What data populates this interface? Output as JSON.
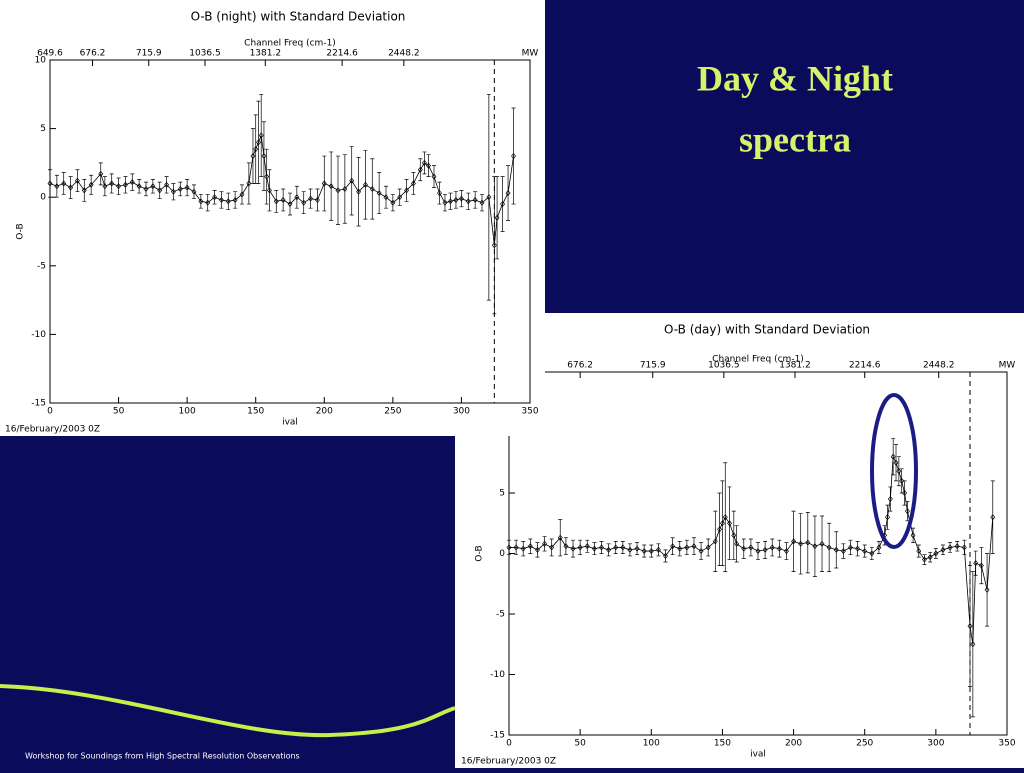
{
  "slide": {
    "title_line1": "Day & Night",
    "title_line2": "spectra",
    "footer": "Workshop for Soundings from High Spectral Resolution Observations"
  },
  "chart_data": [
    {
      "type": "errorbar",
      "title": "O-B (night) with Standard Deviation",
      "x2label": "Channel Freq (cm-1)",
      "xlabel": "ival",
      "ylabel": "O-B",
      "date": "16/February/2003 0Z",
      "xlim": [
        0,
        350
      ],
      "xticks": [
        0,
        50,
        100,
        150,
        200,
        250,
        300,
        350
      ],
      "ylim": [
        -15,
        10
      ],
      "yticks": [
        -15,
        -10,
        -5,
        0,
        5,
        10
      ],
      "x2ticks": [
        {
          "value": 0,
          "label": "649.6"
        },
        {
          "value": 31,
          "label": "676.2"
        },
        {
          "value": 72,
          "label": "715.9"
        },
        {
          "value": 113,
          "label": "1036.5"
        },
        {
          "value": 157,
          "label": "1381.2"
        },
        {
          "value": 213,
          "label": "2214.6"
        },
        {
          "value": 258,
          "label": "2448.2"
        },
        {
          "value": 350,
          "label": "MW"
        }
      ],
      "vline": 324,
      "color": "#000000",
      "x": [
        0,
        5,
        10,
        15,
        20,
        25,
        30,
        37,
        40,
        45,
        50,
        55,
        60,
        65,
        70,
        75,
        80,
        85,
        90,
        95,
        100,
        105,
        110,
        115,
        120,
        125,
        130,
        135,
        140,
        145,
        148,
        150,
        152,
        154,
        156,
        158,
        160,
        165,
        170,
        175,
        180,
        185,
        190,
        195,
        200,
        205,
        210,
        215,
        220,
        225,
        230,
        235,
        240,
        245,
        250,
        255,
        260,
        265,
        270,
        273,
        276,
        280,
        284,
        288,
        292,
        296,
        300,
        305,
        310,
        315,
        320,
        324,
        326,
        330,
        334,
        338
      ],
      "values": [
        1,
        0.8,
        1,
        0.7,
        1.2,
        0.5,
        0.9,
        1.7,
        0.8,
        1,
        0.8,
        0.9,
        1.1,
        0.8,
        0.6,
        0.8,
        0.5,
        0.9,
        0.4,
        0.6,
        0.7,
        0.4,
        -0.3,
        -0.4,
        0,
        -0.2,
        -0.3,
        -0.2,
        0.2,
        1,
        3,
        3.5,
        4,
        4.5,
        3,
        1.5,
        0.5,
        -0.3,
        -0.2,
        -0.5,
        0,
        -0.4,
        -0.1,
        -0.2,
        1,
        0.8,
        0.5,
        0.6,
        1.2,
        0.4,
        0.9,
        0.6,
        0.3,
        0,
        -0.4,
        0,
        0.5,
        1,
        2,
        2.5,
        2.3,
        1.5,
        0.3,
        -0.4,
        -0.3,
        -0.2,
        -0.1,
        -0.3,
        -0.2,
        -0.4,
        0,
        -3.5,
        -1.5,
        -0.5,
        0.3,
        3
      ],
      "errors": [
        1,
        0.8,
        0.8,
        0.8,
        0.8,
        0.8,
        0.7,
        0.8,
        0.7,
        0.7,
        0.6,
        0.6,
        0.6,
        0.5,
        0.5,
        0.5,
        0.6,
        0.6,
        0.6,
        0.5,
        0.6,
        0.5,
        0.5,
        0.6,
        0.5,
        0.6,
        0.6,
        0.6,
        0.7,
        1.5,
        2,
        2.5,
        3,
        3,
        2.5,
        2,
        1.5,
        0.8,
        0.8,
        0.8,
        0.8,
        0.8,
        0.7,
        0.8,
        2,
        2.5,
        2.5,
        2.5,
        2.5,
        2.5,
        2.5,
        2.2,
        1.5,
        0.8,
        0.6,
        0.6,
        0.8,
        0.8,
        0.8,
        0.8,
        0.8,
        0.8,
        0.8,
        0.6,
        0.6,
        0.6,
        0.6,
        0.6,
        0.6,
        0.6,
        7.5,
        5,
        3,
        2,
        2,
        3.5
      ]
    },
    {
      "type": "errorbar",
      "title": "O-B (day) with Standard Deviation",
      "x2label": "Channel Freq (cm-1)",
      "xlabel": "ival",
      "ylabel": "O-B",
      "date": "16/February/2003 0Z",
      "xlim": [
        0,
        350
      ],
      "xticks": [
        0,
        50,
        100,
        150,
        200,
        250,
        300,
        350
      ],
      "ylim": [
        -15,
        15
      ],
      "yticks": [
        -15,
        -10,
        -5,
        0,
        5
      ],
      "x2ticks": [
        {
          "value": 50,
          "label": "676.2"
        },
        {
          "value": 101,
          "label": "715.9"
        },
        {
          "value": 151,
          "label": "1036.5"
        },
        {
          "value": 201,
          "label": "1381.2"
        },
        {
          "value": 250,
          "label": "2214.6"
        },
        {
          "value": 302,
          "label": "2448.2"
        },
        {
          "value": 350,
          "label": "MW"
        }
      ],
      "vline": 324,
      "color": "#000000",
      "x": [
        0,
        5,
        10,
        15,
        20,
        25,
        30,
        36,
        40,
        45,
        50,
        55,
        60,
        65,
        70,
        75,
        80,
        85,
        90,
        95,
        100,
        105,
        110,
        115,
        120,
        125,
        130,
        135,
        140,
        145,
        148,
        150,
        152,
        155,
        158,
        160,
        165,
        170,
        175,
        180,
        185,
        190,
        195,
        200,
        205,
        210,
        215,
        220,
        225,
        230,
        235,
        240,
        245,
        250,
        255,
        260,
        264,
        266,
        268,
        270,
        272,
        274,
        276,
        278,
        280,
        284,
        288,
        292,
        296,
        300,
        305,
        310,
        315,
        320,
        324,
        326,
        328,
        332,
        336,
        340
      ],
      "values": [
        0.5,
        0.5,
        0.4,
        0.6,
        0.3,
        0.8,
        0.5,
        1.3,
        0.6,
        0.4,
        0.5,
        0.6,
        0.4,
        0.5,
        0.3,
        0.5,
        0.5,
        0.3,
        0.4,
        0.2,
        0.2,
        0.3,
        -0.2,
        0.6,
        0.4,
        0.5,
        0.6,
        0.2,
        0.5,
        1,
        2,
        2.5,
        3,
        2.5,
        1.5,
        0.8,
        0.4,
        0.5,
        0.2,
        0.3,
        0.5,
        0.4,
        0.2,
        1,
        0.8,
        0.9,
        0.6,
        0.8,
        0.5,
        0.3,
        0.2,
        0.5,
        0.4,
        0.2,
        0,
        0.5,
        1.5,
        3,
        4.5,
        8,
        7.5,
        6.8,
        6,
        5,
        3.5,
        1.5,
        0.2,
        -0.5,
        -0.3,
        0,
        0.3,
        0.5,
        0.6,
        0.5,
        -6,
        -7.5,
        -0.8,
        -1,
        -3,
        3
      ],
      "errors": [
        0.6,
        0.6,
        0.6,
        0.6,
        0.6,
        0.6,
        0.7,
        1.5,
        0.7,
        0.7,
        0.6,
        0.5,
        0.5,
        0.5,
        0.5,
        0.5,
        0.5,
        0.5,
        0.5,
        0.5,
        0.5,
        0.5,
        0.5,
        0.7,
        0.6,
        0.6,
        0.7,
        0.7,
        0.7,
        2.5,
        3,
        3.5,
        4.5,
        3,
        2,
        1.5,
        0.8,
        0.7,
        0.7,
        0.7,
        0.7,
        0.7,
        0.7,
        2.5,
        2.5,
        2.5,
        2.5,
        2.3,
        2,
        1.5,
        0.6,
        0.6,
        0.6,
        0.5,
        0.5,
        0.5,
        0.8,
        1,
        1,
        1.5,
        1.5,
        1.2,
        1,
        1,
        0.8,
        0.6,
        0.5,
        0.4,
        0.4,
        0.4,
        0.4,
        0.4,
        0.4,
        0.6,
        5,
        6,
        1,
        1.5,
        3,
        3
      ]
    }
  ]
}
